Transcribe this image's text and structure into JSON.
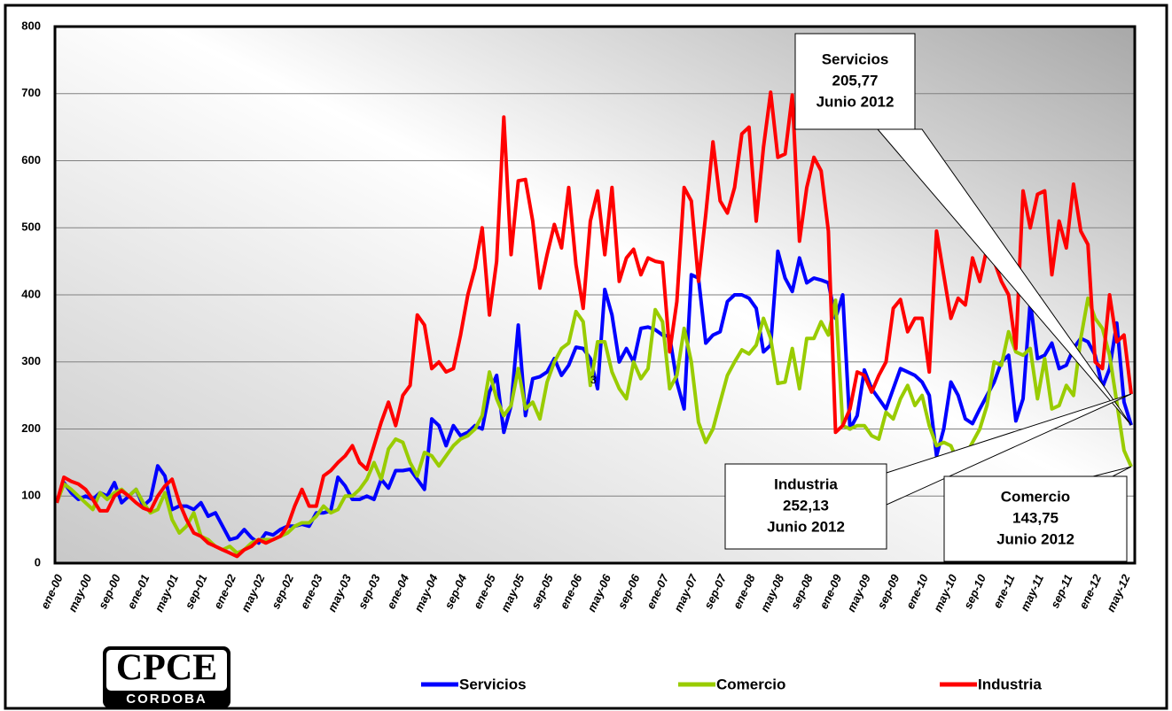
{
  "chart_data": {
    "type": "line",
    "categories": [
      "ene-00",
      null,
      null,
      null,
      "may-00",
      null,
      null,
      null,
      "sep-00",
      null,
      null,
      null,
      "ene-01",
      null,
      null,
      null,
      "may-01",
      null,
      null,
      null,
      "sep-01",
      null,
      null,
      null,
      "ene-02",
      null,
      null,
      null,
      "may-02",
      null,
      null,
      null,
      "sep-02",
      null,
      null,
      null,
      "ene-03",
      null,
      null,
      null,
      "may-03",
      null,
      null,
      null,
      "sep-03",
      null,
      null,
      null,
      "ene-04",
      null,
      null,
      null,
      "may-04",
      null,
      null,
      null,
      "sep-04",
      null,
      null,
      null,
      "ene-05",
      null,
      null,
      null,
      "may-05",
      null,
      null,
      null,
      "sep-05",
      null,
      null,
      null,
      "ene-06",
      null,
      null,
      null,
      "may-06",
      null,
      null,
      null,
      "sep-06",
      null,
      null,
      null,
      "ene-07",
      null,
      null,
      null,
      "may-07",
      null,
      null,
      null,
      "sep-07",
      null,
      null,
      null,
      "ene-08",
      null,
      null,
      null,
      "may-08",
      null,
      null,
      null,
      "sep-08",
      null,
      null,
      null,
      "ene-09",
      null,
      null,
      null,
      "may-09",
      null,
      null,
      null,
      "sep-09",
      null,
      null,
      null,
      "ene-10",
      null,
      null,
      null,
      "may-10",
      null,
      null,
      null,
      "sep-10",
      null,
      null,
      null,
      "ene-11",
      null,
      null,
      null,
      "may-11",
      null,
      null,
      null,
      "sep-11",
      null,
      null,
      null,
      "ene-12",
      null,
      null,
      null,
      "may-12",
      null
    ],
    "series": [
      {
        "name": "Servicios",
        "color": "#0000ff",
        "values": [
          90,
          120,
          105,
          95,
          100,
          95,
          105,
          100,
          120,
          90,
          100,
          110,
          85,
          95,
          145,
          130,
          80,
          85,
          85,
          80,
          90,
          70,
          75,
          55,
          35,
          38,
          50,
          38,
          30,
          45,
          42,
          50,
          55,
          55,
          58,
          55,
          75,
          75,
          78,
          128,
          115,
          95,
          95,
          100,
          95,
          125,
          112,
          138,
          138,
          140,
          125,
          110,
          215,
          205,
          175,
          205,
          190,
          195,
          205,
          200,
          255,
          280,
          195,
          235,
          355,
          220,
          275,
          278,
          285,
          305,
          280,
          295,
          322,
          320,
          305,
          260,
          408,
          370,
          300,
          320,
          300,
          350,
          352,
          348,
          340,
          338,
          270,
          230,
          430,
          425,
          328,
          340,
          345,
          390,
          400,
          400,
          395,
          380,
          315,
          325,
          465,
          425,
          405,
          455,
          418,
          425,
          422,
          418,
          365,
          400,
          200,
          220,
          288,
          260,
          245,
          230,
          260,
          290,
          285,
          280,
          270,
          250,
          160,
          200,
          270,
          250,
          215,
          208,
          230,
          250,
          270,
          300,
          310,
          212,
          245,
          390,
          305,
          310,
          328,
          290,
          295,
          320,
          335,
          330,
          310,
          262,
          290,
          358,
          240,
          205.77
        ]
      },
      {
        "name": "Comercio",
        "color": "#99cc00",
        "values": [
          90,
          118,
          110,
          100,
          90,
          80,
          105,
          95,
          105,
          110,
          100,
          110,
          90,
          75,
          80,
          105,
          65,
          45,
          55,
          75,
          40,
          35,
          25,
          20,
          25,
          15,
          20,
          30,
          35,
          35,
          35,
          40,
          45,
          55,
          60,
          60,
          70,
          85,
          75,
          80,
          100,
          100,
          110,
          125,
          150,
          125,
          170,
          185,
          180,
          150,
          130,
          165,
          160,
          145,
          160,
          175,
          185,
          190,
          200,
          220,
          285,
          245,
          220,
          235,
          290,
          230,
          240,
          215,
          270,
          300,
          320,
          328,
          375,
          360,
          265,
          330,
          330,
          285,
          260,
          245,
          300,
          275,
          290,
          378,
          360,
          260,
          280,
          350,
          300,
          210,
          180,
          200,
          240,
          280,
          300,
          318,
          312,
          325,
          365,
          335,
          268,
          270,
          320,
          260,
          335,
          335,
          360,
          340,
          392,
          205,
          200,
          205,
          205,
          190,
          185,
          225,
          215,
          245,
          265,
          235,
          250,
          205,
          175,
          180,
          175,
          150,
          160,
          180,
          200,
          235,
          300,
          295,
          345,
          315,
          310,
          320,
          245,
          305,
          230,
          235,
          265,
          250,
          335,
          395,
          365,
          350,
          310,
          240,
          168,
          143.75
        ]
      },
      {
        "name": "Industria",
        "color": "#ff0000",
        "values": [
          90,
          128,
          122,
          118,
          110,
          95,
          78,
          78,
          100,
          108,
          100,
          90,
          82,
          78,
          100,
          115,
          125,
          90,
          65,
          45,
          40,
          30,
          25,
          20,
          15,
          10,
          20,
          25,
          35,
          30,
          35,
          40,
          55,
          85,
          110,
          85,
          85,
          130,
          138,
          150,
          160,
          175,
          150,
          140,
          175,
          210,
          240,
          205,
          250,
          265,
          370,
          355,
          290,
          300,
          285,
          290,
          340,
          400,
          440,
          500,
          370,
          450,
          665,
          460,
          570,
          572,
          510,
          410,
          460,
          505,
          470,
          560,
          445,
          380,
          510,
          555,
          460,
          560,
          420,
          455,
          468,
          430,
          455,
          450,
          448,
          315,
          390,
          560,
          540,
          420,
          520,
          628,
          540,
          522,
          560,
          640,
          650,
          510,
          620,
          702,
          605,
          610,
          698,
          480,
          560,
          605,
          585,
          495,
          195,
          205,
          230,
          285,
          280,
          255,
          280,
          300,
          380,
          393,
          345,
          365,
          365,
          285,
          495,
          430,
          365,
          395,
          385,
          455,
          420,
          470,
          450,
          420,
          400,
          320,
          555,
          500,
          550,
          555,
          430,
          510,
          470,
          565,
          495,
          475,
          300,
          290,
          400,
          330,
          340,
          252.13
        ]
      }
    ],
    "ylim": [
      0,
      800
    ],
    "yticks": [
      0,
      100,
      200,
      300,
      400,
      500,
      600,
      700,
      800
    ],
    "grid": true,
    "annotations": [
      {
        "text": [
          "Servicios",
          "205,77",
          "Junio 2012"
        ]
      },
      {
        "text": [
          "Industria",
          "252,13",
          "Junio 2012"
        ]
      },
      {
        "text": [
          "Comercio",
          "143,75",
          "Junio 2012"
        ]
      },
      {
        "text": [
          "3"
        ]
      }
    ],
    "logo": {
      "text": "CPCE",
      "subtext": "CORDOBA"
    }
  }
}
